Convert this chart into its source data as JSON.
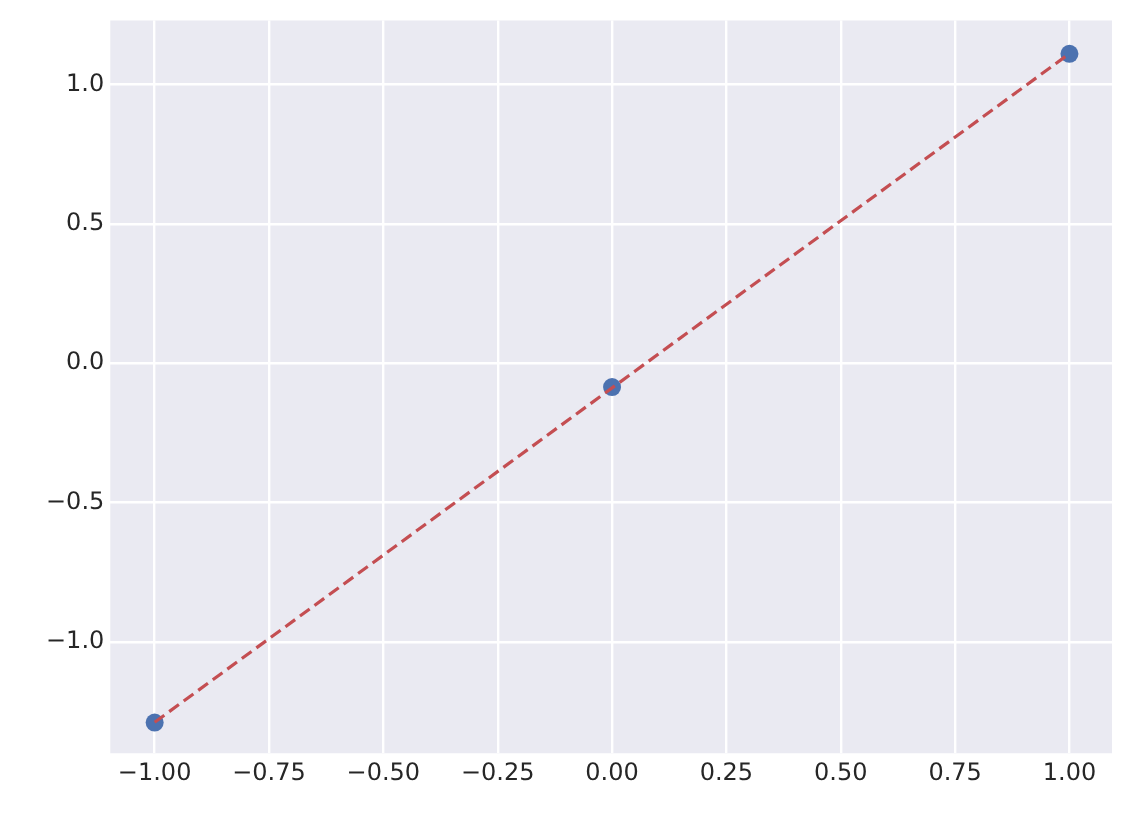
{
  "chart_data": {
    "type": "scatter",
    "series": [
      {
        "color": "#4c72b0",
        "x": [
          -1,
          0,
          1
        ],
        "values": [
          -1.29,
          -0.086,
          1.11
        ],
        "marker": "circle"
      },
      {
        "type": "line",
        "color": "#c44e52",
        "x": [
          -1,
          1
        ],
        "values": [
          -1.289,
          1.111
        ],
        "line_style": "dashed",
        "marker": "none"
      }
    ],
    "xlim": [
      -1.097,
      1.093
    ],
    "xticks": [
      {
        "value": -1,
        "label": "−1.00"
      },
      {
        "value": -0.75,
        "label": "−0.75"
      },
      {
        "value": -0.5,
        "label": "−0.50"
      },
      {
        "value": -0.25,
        "label": "−0.25"
      },
      {
        "value": 0,
        "label": "0.00"
      },
      {
        "value": 0.25,
        "label": "0.25"
      },
      {
        "value": 0.5,
        "label": "0.50"
      },
      {
        "value": 0.75,
        "label": "0.75"
      },
      {
        "value": 1,
        "label": "1.00"
      }
    ],
    "ylim": [
      -1.4,
      1.23
    ],
    "yticks": [
      {
        "value": -1,
        "label": "−1.0"
      },
      {
        "value": -0.5,
        "label": "−0.5"
      },
      {
        "value": 0,
        "label": "0.0"
      },
      {
        "value": 0.5,
        "label": "0.5"
      },
      {
        "value": 1,
        "label": "1.0"
      }
    ],
    "grid": true,
    "legend": false
  }
}
